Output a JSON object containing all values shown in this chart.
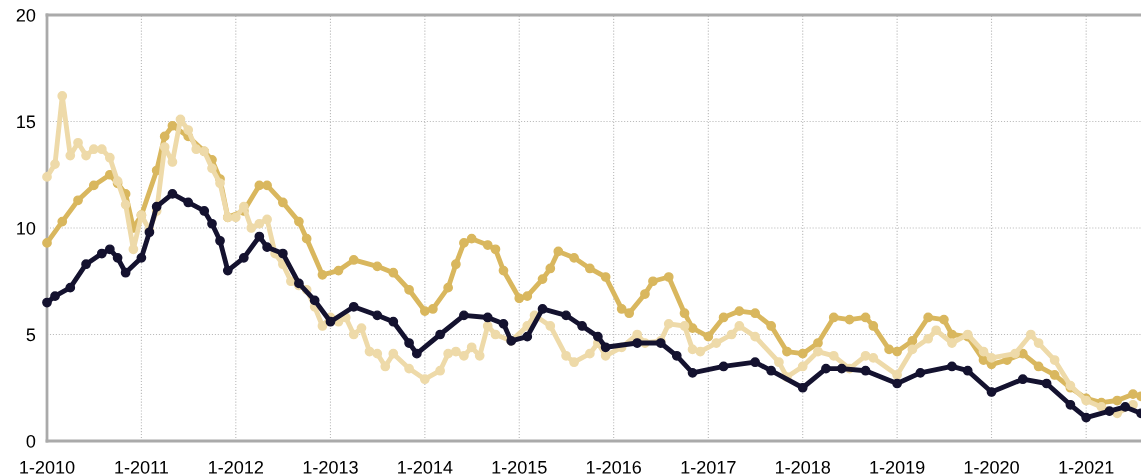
{
  "chart_data": {
    "type": "line",
    "marker": "circle",
    "line_style": "solid",
    "grid": true,
    "xlim": [
      "2010-01",
      "2021-08"
    ],
    "xticks": [
      {
        "value": "2010-01",
        "label": "1-2010"
      },
      {
        "value": "2011-01",
        "label": "1-2011"
      },
      {
        "value": "2012-01",
        "label": "1-2012"
      },
      {
        "value": "2013-01",
        "label": "1-2013"
      },
      {
        "value": "2014-01",
        "label": "1-2014"
      },
      {
        "value": "2015-01",
        "label": "1-2015"
      },
      {
        "value": "2016-01",
        "label": "1-2016"
      },
      {
        "value": "2017-01",
        "label": "1-2017"
      },
      {
        "value": "2018-01",
        "label": "1-2018"
      },
      {
        "value": "2019-01",
        "label": "1-2019"
      },
      {
        "value": "2020-01",
        "label": "1-2020"
      },
      {
        "value": "2021-01",
        "label": "1-2021"
      }
    ],
    "ylim": [
      0,
      20
    ],
    "yticks": [
      0,
      5,
      10,
      15,
      20
    ],
    "series": [
      {
        "color": "#d9b75e",
        "x": [
          "2010-01",
          "2010-03",
          "2010-05",
          "2010-07",
          "2010-09",
          "2010-10",
          "2010-11",
          "2010-12",
          "2011-01",
          "2011-03",
          "2011-04",
          "2011-05",
          "2011-07",
          "2011-09",
          "2011-10",
          "2011-11",
          "2011-12",
          "2012-02",
          "2012-04",
          "2012-05",
          "2012-07",
          "2012-09",
          "2012-10",
          "2012-12",
          "2013-02",
          "2013-04",
          "2013-07",
          "2013-09",
          "2013-11",
          "2014-01",
          "2014-02",
          "2014-04",
          "2014-05",
          "2014-06",
          "2014-07",
          "2014-09",
          "2014-10",
          "2014-11",
          "2015-01",
          "2015-02",
          "2015-04",
          "2015-05",
          "2015-06",
          "2015-08",
          "2015-10",
          "2015-12",
          "2016-02",
          "2016-03",
          "2016-05",
          "2016-06",
          "2016-08",
          "2016-10",
          "2016-11",
          "2017-01",
          "2017-03",
          "2017-05",
          "2017-07",
          "2017-09",
          "2017-11",
          "2018-01",
          "2018-03",
          "2018-05",
          "2018-07",
          "2018-09",
          "2018-10",
          "2018-12",
          "2019-01",
          "2019-03",
          "2019-05",
          "2019-07",
          "2019-08",
          "2019-10",
          "2019-12",
          "2020-01",
          "2020-03",
          "2020-05",
          "2020-07",
          "2020-09",
          "2020-11",
          "2021-01",
          "2021-03",
          "2021-05",
          "2021-07",
          "2021-08"
        ],
        "values": [
          9.3,
          10.3,
          11.3,
          12.0,
          12.5,
          12.1,
          11.6,
          10.0,
          10.6,
          12.7,
          14.3,
          14.8,
          14.3,
          13.6,
          13.2,
          12.3,
          10.5,
          10.8,
          12.0,
          12.0,
          11.2,
          10.3,
          9.5,
          7.8,
          8.0,
          8.5,
          8.2,
          7.9,
          7.1,
          6.1,
          6.2,
          7.2,
          8.3,
          9.3,
          9.5,
          9.2,
          9.0,
          8.0,
          6.7,
          6.8,
          7.6,
          8.1,
          8.9,
          8.6,
          8.1,
          7.7,
          6.2,
          6.0,
          6.9,
          7.5,
          7.7,
          6.0,
          5.3,
          4.9,
          5.8,
          6.1,
          6.0,
          5.4,
          4.2,
          4.1,
          4.6,
          5.8,
          5.7,
          5.8,
          5.4,
          4.3,
          4.2,
          4.7,
          5.8,
          5.7,
          5.0,
          4.9,
          3.8,
          3.6,
          3.8,
          4.1,
          3.5,
          3.1,
          2.5,
          2.0,
          1.8,
          1.9,
          2.2,
          2.1
        ]
      },
      {
        "color": "#eedaa9",
        "x": [
          "2010-01",
          "2010-02",
          "2010-03",
          "2010-04",
          "2010-05",
          "2010-06",
          "2010-07",
          "2010-08",
          "2010-09",
          "2010-10",
          "2010-11",
          "2010-12",
          "2011-01",
          "2011-02",
          "2011-03",
          "2011-04",
          "2011-05",
          "2011-06",
          "2011-07",
          "2011-08",
          "2011-09",
          "2011-10",
          "2011-11",
          "2011-12",
          "2012-01",
          "2012-02",
          "2012-03",
          "2012-04",
          "2012-05",
          "2012-06",
          "2012-07",
          "2012-08",
          "2012-09",
          "2012-10",
          "2012-11",
          "2012-12",
          "2013-01",
          "2013-02",
          "2013-03",
          "2013-04",
          "2013-05",
          "2013-06",
          "2013-07",
          "2013-08",
          "2013-09",
          "2013-11",
          "2014-01",
          "2014-03",
          "2014-04",
          "2014-05",
          "2014-06",
          "2014-07",
          "2014-08",
          "2014-09",
          "2014-10",
          "2014-12",
          "2015-02",
          "2015-03",
          "2015-05",
          "2015-07",
          "2015-08",
          "2015-10",
          "2015-11",
          "2015-12",
          "2016-02",
          "2016-04",
          "2016-05",
          "2016-07",
          "2016-08",
          "2016-10",
          "2016-11",
          "2016-12",
          "2017-02",
          "2017-04",
          "2017-05",
          "2017-07",
          "2017-10",
          "2017-11",
          "2018-01",
          "2018-03",
          "2018-05",
          "2018-07",
          "2018-09",
          "2018-10",
          "2019-01",
          "2019-03",
          "2019-05",
          "2019-06",
          "2019-08",
          "2019-10",
          "2019-12",
          "2020-01",
          "2020-04",
          "2020-06",
          "2020-07",
          "2020-09",
          "2020-11",
          "2021-01",
          "2021-03",
          "2021-05",
          "2021-07"
        ],
        "values": [
          12.4,
          13.0,
          16.2,
          13.4,
          14.0,
          13.4,
          13.7,
          13.7,
          13.3,
          12.2,
          11.1,
          9.0,
          10.6,
          9.9,
          10.8,
          13.8,
          13.1,
          15.1,
          14.6,
          13.7,
          13.6,
          12.8,
          12.1,
          10.5,
          10.5,
          11.0,
          10.0,
          10.2,
          10.4,
          8.8,
          8.3,
          7.5,
          7.3,
          7.1,
          6.3,
          5.4,
          5.8,
          5.6,
          5.8,
          5.0,
          5.3,
          4.2,
          4.1,
          3.5,
          4.1,
          3.4,
          2.9,
          3.3,
          4.1,
          4.2,
          4.0,
          4.4,
          4.0,
          5.4,
          5.0,
          4.7,
          5.4,
          5.9,
          5.4,
          4.0,
          3.7,
          4.1,
          4.6,
          4.0,
          4.4,
          5.0,
          4.6,
          4.7,
          5.5,
          5.4,
          4.3,
          4.2,
          4.6,
          5.0,
          5.4,
          4.9,
          3.7,
          3.0,
          3.5,
          4.2,
          4.0,
          3.4,
          4.0,
          3.9,
          3.1,
          4.3,
          4.8,
          5.2,
          4.6,
          5.0,
          4.2,
          3.9,
          4.1,
          5.0,
          4.6,
          3.8,
          2.6,
          1.9,
          1.6,
          1.3,
          1.7
        ]
      },
      {
        "color": "#14122f",
        "x": [
          "2010-01",
          "2010-02",
          "2010-04",
          "2010-06",
          "2010-08",
          "2010-09",
          "2010-10",
          "2010-11",
          "2011-01",
          "2011-02",
          "2011-03",
          "2011-05",
          "2011-07",
          "2011-09",
          "2011-10",
          "2011-11",
          "2011-12",
          "2012-02",
          "2012-04",
          "2012-05",
          "2012-07",
          "2012-09",
          "2012-11",
          "2013-01",
          "2013-04",
          "2013-07",
          "2013-09",
          "2013-11",
          "2013-12",
          "2014-03",
          "2014-06",
          "2014-09",
          "2014-11",
          "2014-12",
          "2015-02",
          "2015-04",
          "2015-07",
          "2015-09",
          "2015-11",
          "2015-12",
          "2016-04",
          "2016-07",
          "2016-09",
          "2016-11",
          "2017-03",
          "2017-07",
          "2017-09",
          "2018-01",
          "2018-04",
          "2018-06",
          "2018-09",
          "2019-01",
          "2019-04",
          "2019-08",
          "2019-10",
          "2020-01",
          "2020-05",
          "2020-08",
          "2020-11",
          "2021-01",
          "2021-04",
          "2021-06",
          "2021-08"
        ],
        "values": [
          6.5,
          6.8,
          7.2,
          8.3,
          8.8,
          9.0,
          8.6,
          7.9,
          8.6,
          9.8,
          11.0,
          11.6,
          11.2,
          10.8,
          10.2,
          9.4,
          8.0,
          8.6,
          9.6,
          9.1,
          8.8,
          7.4,
          6.6,
          5.6,
          6.3,
          5.9,
          5.6,
          4.6,
          4.1,
          5.0,
          5.9,
          5.8,
          5.5,
          4.7,
          4.9,
          6.2,
          5.9,
          5.4,
          4.9,
          4.4,
          4.6,
          4.6,
          4.0,
          3.2,
          3.5,
          3.7,
          3.3,
          2.5,
          3.4,
          3.4,
          3.3,
          2.7,
          3.2,
          3.5,
          3.3,
          2.3,
          2.9,
          2.7,
          1.7,
          1.1,
          1.4,
          1.6,
          1.3
        ]
      }
    ]
  }
}
